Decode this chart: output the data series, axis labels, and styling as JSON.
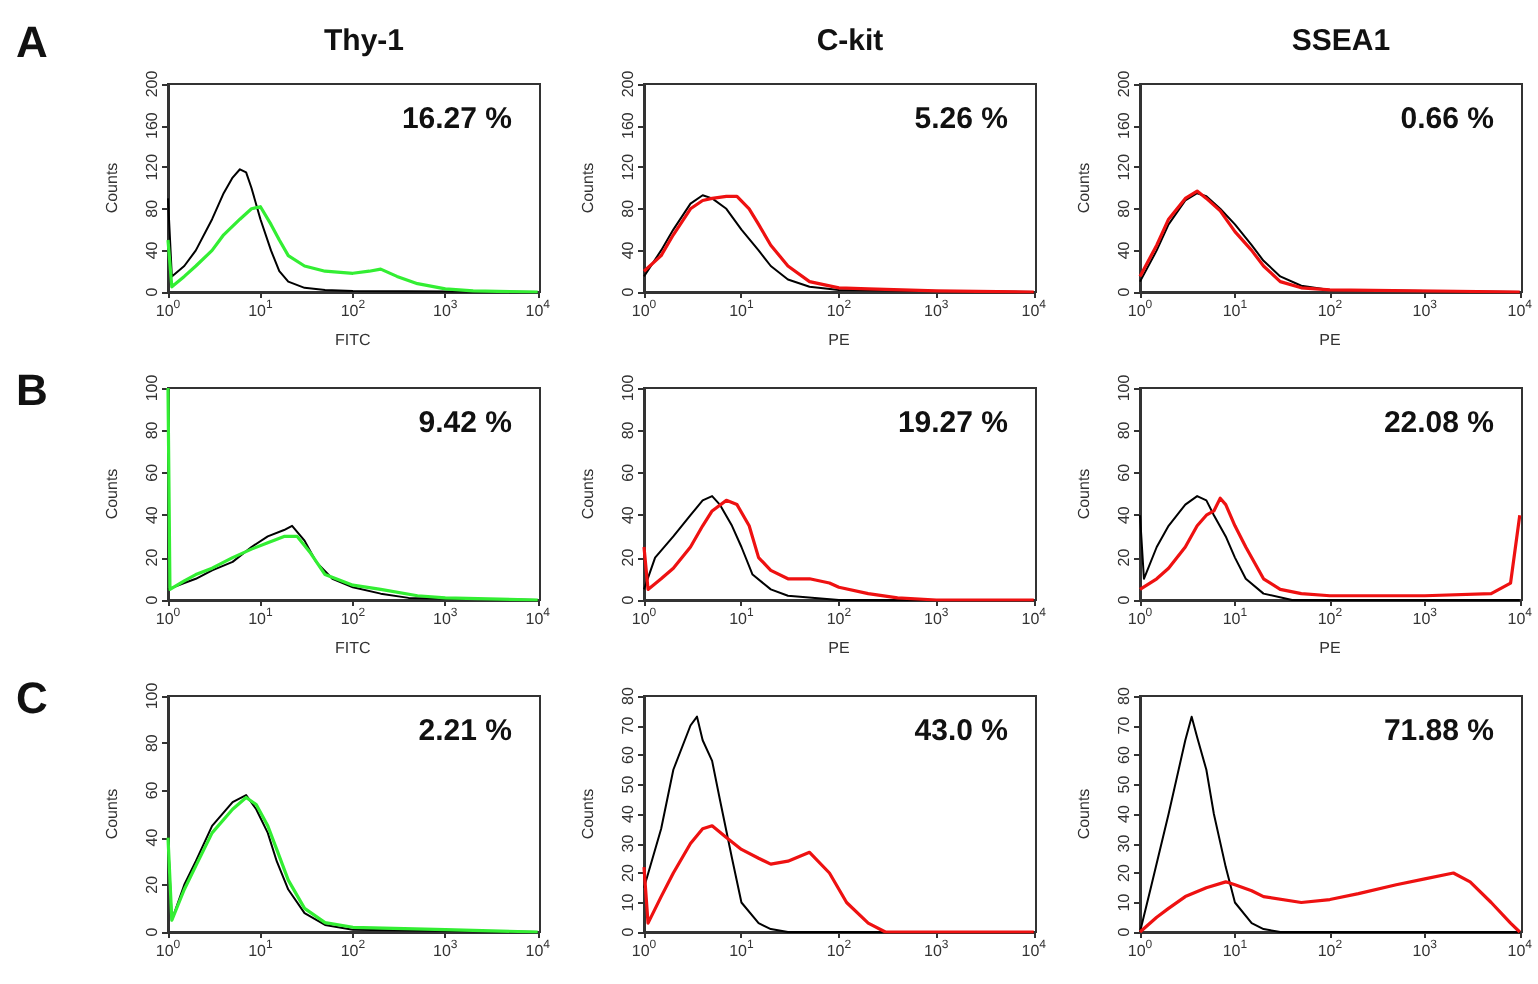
{
  "chart_data": [
    {
      "type": "line",
      "title": "Thy-1",
      "xlabel": "FITC",
      "ylabel": "Counts",
      "log": "x",
      "xlim": [
        1,
        10000
      ],
      "ylim": [
        0,
        200
      ],
      "yticks": [
        0,
        40,
        80,
        120,
        160,
        200
      ],
      "xticks": [
        {
          "value": 1,
          "label": "10$^{0}$"
        },
        {
          "value": 10,
          "label": "10$^{1}$"
        },
        {
          "value": 100,
          "label": "10$^{2}$"
        },
        {
          "value": 1000,
          "label": "10$^{3}$"
        },
        {
          "value": 10000,
          "label": "10$^{4}$"
        }
      ],
      "grid": false,
      "annotations": [
        "16.27 %",
        "A"
      ],
      "series": [
        {
          "color": "#000000",
          "x": [
            1,
            1.1,
            1.5,
            2,
            3,
            4,
            5,
            6,
            7,
            8,
            10,
            13,
            16,
            20,
            30,
            50,
            100,
            10000
          ],
          "values": [
            90,
            15,
            25,
            40,
            70,
            95,
            110,
            118,
            115,
            100,
            70,
            40,
            20,
            10,
            4,
            2,
            1,
            0
          ]
        },
        {
          "color": "#33ee33",
          "x": [
            1,
            1.1,
            1.5,
            2,
            3,
            4,
            6,
            8,
            10,
            13,
            16,
            20,
            30,
            50,
            100,
            150,
            200,
            300,
            500,
            1000,
            2000,
            10000
          ],
          "values": [
            50,
            5,
            15,
            25,
            40,
            55,
            70,
            80,
            82,
            65,
            50,
            35,
            25,
            20,
            18,
            20,
            22,
            15,
            8,
            3,
            1,
            0
          ]
        }
      ]
    },
    {
      "type": "line",
      "title": "C-kit",
      "xlabel": "PE",
      "ylabel": "Counts",
      "log": "x",
      "xlim": [
        1,
        10000
      ],
      "ylim": [
        0,
        200
      ],
      "yticks": [
        0,
        40,
        80,
        120,
        160,
        200
      ],
      "xticks": [
        {
          "value": 1,
          "label": "10$^{0}$"
        },
        {
          "value": 10,
          "label": "10$^{1}$"
        },
        {
          "value": 100,
          "label": "10$^{2}$"
        },
        {
          "value": 1000,
          "label": "10$^{3}$"
        },
        {
          "value": 10000,
          "label": "10$^{4}$"
        }
      ],
      "grid": false,
      "annotations": [
        "5.26 %"
      ],
      "series": [
        {
          "color": "#000000",
          "x": [
            1,
            1.5,
            2,
            3,
            4,
            5,
            7,
            10,
            15,
            20,
            30,
            50,
            100,
            10000
          ],
          "values": [
            15,
            40,
            60,
            85,
            93,
            90,
            80,
            60,
            40,
            25,
            12,
            5,
            2,
            0
          ]
        },
        {
          "color": "#ee1111",
          "x": [
            1,
            1.5,
            2,
            3,
            4,
            5,
            7,
            9,
            12,
            15,
            20,
            30,
            50,
            100,
            200,
            1000,
            10000
          ],
          "values": [
            20,
            35,
            55,
            80,
            88,
            90,
            92,
            92,
            80,
            65,
            45,
            25,
            10,
            4,
            3,
            1,
            0
          ]
        }
      ]
    },
    {
      "type": "line",
      "title": "SSEA1",
      "xlabel": "PE",
      "ylabel": "Counts",
      "log": "x",
      "xlim": [
        1,
        10000
      ],
      "ylim": [
        0,
        200
      ],
      "yticks": [
        0,
        40,
        80,
        120,
        160,
        200
      ],
      "xticks": [
        {
          "value": 1,
          "label": "10$^{0}$"
        },
        {
          "value": 10,
          "label": "10$^{1}$"
        },
        {
          "value": 100,
          "label": "10$^{2}$"
        },
        {
          "value": 1000,
          "label": "10$^{3}$"
        },
        {
          "value": 10000,
          "label": "10$^{4}$"
        }
      ],
      "grid": false,
      "annotations": [
        "0.66 %"
      ],
      "series": [
        {
          "color": "#000000",
          "x": [
            1,
            1.5,
            2,
            3,
            4,
            5,
            7,
            10,
            15,
            20,
            30,
            50,
            100,
            10000
          ],
          "values": [
            10,
            40,
            65,
            88,
            95,
            92,
            80,
            65,
            45,
            30,
            15,
            6,
            2,
            0
          ]
        },
        {
          "color": "#ee1111",
          "x": [
            1,
            1.5,
            2,
            3,
            4,
            5,
            7,
            10,
            15,
            20,
            30,
            50,
            100,
            10000
          ],
          "values": [
            15,
            45,
            70,
            90,
            97,
            90,
            78,
            58,
            40,
            25,
            10,
            4,
            2,
            0
          ]
        }
      ]
    },
    {
      "type": "line",
      "xlabel": "FITC",
      "ylabel": "Counts",
      "log": "x",
      "xlim": [
        1,
        10000
      ],
      "ylim": [
        0,
        100
      ],
      "yticks": [
        0,
        20,
        40,
        60,
        80,
        100
      ],
      "xticks": [
        {
          "value": 1,
          "label": "10$^{0}$"
        },
        {
          "value": 10,
          "label": "10$^{1}$"
        },
        {
          "value": 100,
          "label": "10$^{2}$"
        },
        {
          "value": 1000,
          "label": "10$^{3}$"
        },
        {
          "value": 10000,
          "label": "10$^{4}$"
        }
      ],
      "grid": false,
      "annotations": [
        "9.42 %",
        "B"
      ],
      "series": [
        {
          "color": "#000000",
          "x": [
            1,
            1.5,
            2,
            3,
            5,
            8,
            12,
            18,
            22,
            30,
            40,
            60,
            100,
            200,
            400,
            10000
          ],
          "values": [
            5,
            8,
            10,
            14,
            18,
            25,
            30,
            33,
            35,
            28,
            18,
            10,
            6,
            3,
            1,
            0
          ]
        },
        {
          "color": "#33ee33",
          "x": [
            1,
            1.05,
            1.5,
            2,
            3,
            5,
            8,
            12,
            18,
            25,
            35,
            50,
            100,
            200,
            500,
            1000,
            10000
          ],
          "values": [
            100,
            5,
            9,
            12,
            15,
            20,
            24,
            27,
            30,
            30,
            22,
            12,
            7,
            5,
            2,
            1,
            0
          ]
        }
      ]
    },
    {
      "type": "line",
      "xlabel": "PE",
      "ylabel": "Counts",
      "log": "x",
      "xlim": [
        1,
        10000
      ],
      "ylim": [
        0,
        100
      ],
      "yticks": [
        0,
        20,
        40,
        60,
        80,
        100
      ],
      "xticks": [
        {
          "value": 1,
          "label": "10$^{0}$"
        },
        {
          "value": 10,
          "label": "10$^{1}$"
        },
        {
          "value": 100,
          "label": "10$^{2}$"
        },
        {
          "value": 1000,
          "label": "10$^{3}$"
        },
        {
          "value": 10000,
          "label": "10$^{4}$"
        }
      ],
      "grid": false,
      "annotations": [
        "19.27 %"
      ],
      "series": [
        {
          "color": "#000000",
          "x": [
            1,
            1.3,
            2,
            3,
            4,
            5,
            6,
            8,
            10,
            13,
            20,
            30,
            100,
            10000
          ],
          "values": [
            5,
            20,
            30,
            40,
            47,
            49,
            45,
            35,
            25,
            12,
            5,
            2,
            0,
            0
          ]
        },
        {
          "color": "#ee1111",
          "x": [
            1,
            1.1,
            1.5,
            2,
            3,
            4,
            5,
            7,
            9,
            12,
            15,
            20,
            30,
            50,
            80,
            100,
            200,
            400,
            1000,
            10000
          ],
          "values": [
            25,
            5,
            10,
            15,
            25,
            35,
            42,
            47,
            45,
            35,
            20,
            14,
            10,
            10,
            8,
            6,
            3,
            1,
            0,
            0
          ]
        }
      ]
    },
    {
      "type": "line",
      "xlabel": "PE",
      "ylabel": "Counts",
      "log": "x",
      "xlim": [
        1,
        10000
      ],
      "ylim": [
        0,
        100
      ],
      "yticks": [
        0,
        20,
        40,
        60,
        80,
        100
      ],
      "xticks": [
        {
          "value": 1,
          "label": "10$^{0}$"
        },
        {
          "value": 10,
          "label": "10$^{1}$"
        },
        {
          "value": 100,
          "label": "10$^{2}$"
        },
        {
          "value": 1000,
          "label": "10$^{3}$"
        },
        {
          "value": 10000,
          "label": "10$^{4}$"
        }
      ],
      "grid": false,
      "annotations": [
        "22.08 %"
      ],
      "series": [
        {
          "color": "#000000",
          "x": [
            1,
            1.1,
            1.5,
            2,
            3,
            4,
            5,
            6,
            8,
            10,
            13,
            20,
            40,
            10000
          ],
          "values": [
            40,
            10,
            25,
            35,
            45,
            49,
            47,
            40,
            30,
            20,
            10,
            3,
            0,
            0
          ]
        },
        {
          "color": "#ee1111",
          "x": [
            1,
            1.5,
            2,
            3,
            4,
            5,
            6,
            7,
            8,
            10,
            13,
            20,
            30,
            50,
            100,
            1000,
            5000,
            8000,
            10000
          ],
          "values": [
            5,
            10,
            15,
            25,
            35,
            40,
            42,
            48,
            45,
            35,
            25,
            10,
            5,
            3,
            2,
            2,
            3,
            8,
            40
          ]
        }
      ]
    },
    {
      "type": "line",
      "ylabel": "Counts",
      "log": "x",
      "xlim": [
        1,
        10000
      ],
      "ylim": [
        0,
        100
      ],
      "yticks": [
        0,
        20,
        40,
        60,
        80,
        100
      ],
      "xticks": [
        {
          "value": 1,
          "label": "10$^{0}$"
        },
        {
          "value": 10,
          "label": "10$^{1}$"
        },
        {
          "value": 100,
          "label": "10$^{2}$"
        },
        {
          "value": 1000,
          "label": "10$^{3}$"
        },
        {
          "value": 10000,
          "label": "10$^{4}$"
        }
      ],
      "grid": false,
      "annotations": [
        "2.21 %",
        "C"
      ],
      "series": [
        {
          "color": "#000000",
          "x": [
            1,
            1.1,
            1.5,
            2,
            3,
            5,
            7,
            9,
            12,
            15,
            20,
            30,
            50,
            100,
            10000
          ],
          "values": [
            40,
            5,
            20,
            30,
            45,
            55,
            58,
            52,
            42,
            30,
            18,
            8,
            3,
            1,
            0
          ]
        },
        {
          "color": "#33ee33",
          "x": [
            1,
            1.1,
            1.5,
            2,
            3,
            5,
            7,
            9,
            12,
            15,
            20,
            30,
            50,
            100,
            1000,
            10000
          ],
          "values": [
            40,
            5,
            18,
            28,
            42,
            52,
            57,
            54,
            45,
            35,
            22,
            10,
            4,
            2,
            1,
            0
          ]
        }
      ]
    },
    {
      "type": "line",
      "ylabel": "Counts",
      "log": "x",
      "xlim": [
        1,
        10000
      ],
      "ylim": [
        0,
        80
      ],
      "yticks": [
        0,
        10,
        20,
        30,
        40,
        50,
        60,
        70,
        80
      ],
      "xticks": [
        {
          "value": 1,
          "label": "10$^{0}$"
        },
        {
          "value": 10,
          "label": "10$^{1}$"
        },
        {
          "value": 100,
          "label": "10$^{2}$"
        },
        {
          "value": 1000,
          "label": "10$^{3}$"
        },
        {
          "value": 10000,
          "label": "10$^{4}$"
        }
      ],
      "grid": false,
      "annotations": [
        "43.0 %"
      ],
      "series": [
        {
          "color": "#000000",
          "x": [
            1,
            1.5,
            2,
            3,
            3.5,
            4,
            5,
            6,
            8,
            10,
            15,
            20,
            30,
            10000
          ],
          "values": [
            15,
            35,
            55,
            70,
            73,
            65,
            58,
            45,
            25,
            10,
            3,
            1,
            0,
            0
          ]
        },
        {
          "color": "#ee1111",
          "x": [
            1,
            1.1,
            1.5,
            2,
            3,
            4,
            5,
            7,
            10,
            15,
            20,
            30,
            50,
            80,
            120,
            200,
            300,
            10000
          ],
          "values": [
            22,
            3,
            12,
            20,
            30,
            35,
            36,
            32,
            28,
            25,
            23,
            24,
            27,
            20,
            10,
            3,
            0,
            0
          ]
        }
      ]
    },
    {
      "type": "line",
      "ylabel": "Counts",
      "log": "x",
      "xlim": [
        1,
        10000
      ],
      "ylim": [
        0,
        80
      ],
      "yticks": [
        0,
        10,
        20,
        30,
        40,
        50,
        60,
        70,
        80
      ],
      "xticks": [
        {
          "value": 1,
          "label": "10$^{0}$"
        },
        {
          "value": 10,
          "label": "10$^{1}$"
        },
        {
          "value": 100,
          "label": "10$^{2}$"
        },
        {
          "value": 1000,
          "label": "10$^{3}$"
        },
        {
          "value": 10000,
          "label": "10$^{4}$"
        }
      ],
      "grid": false,
      "annotations": [
        "71.88 %"
      ],
      "series": [
        {
          "color": "#000000",
          "x": [
            1,
            1.3,
            2,
            3,
            3.5,
            4,
            5,
            6,
            8,
            10,
            15,
            20,
            30,
            10000
          ],
          "values": [
            0,
            15,
            40,
            65,
            73,
            66,
            55,
            40,
            22,
            10,
            3,
            1,
            0,
            0
          ]
        },
        {
          "color": "#ee1111",
          "x": [
            1,
            1.5,
            2,
            3,
            5,
            8,
            10,
            15,
            20,
            50,
            100,
            200,
            500,
            1000,
            2000,
            3000,
            5000,
            8000,
            10000
          ],
          "values": [
            0,
            5,
            8,
            12,
            15,
            17,
            16,
            14,
            12,
            10,
            11,
            13,
            16,
            18,
            20,
            17,
            10,
            3,
            0
          ]
        }
      ]
    }
  ]
}
